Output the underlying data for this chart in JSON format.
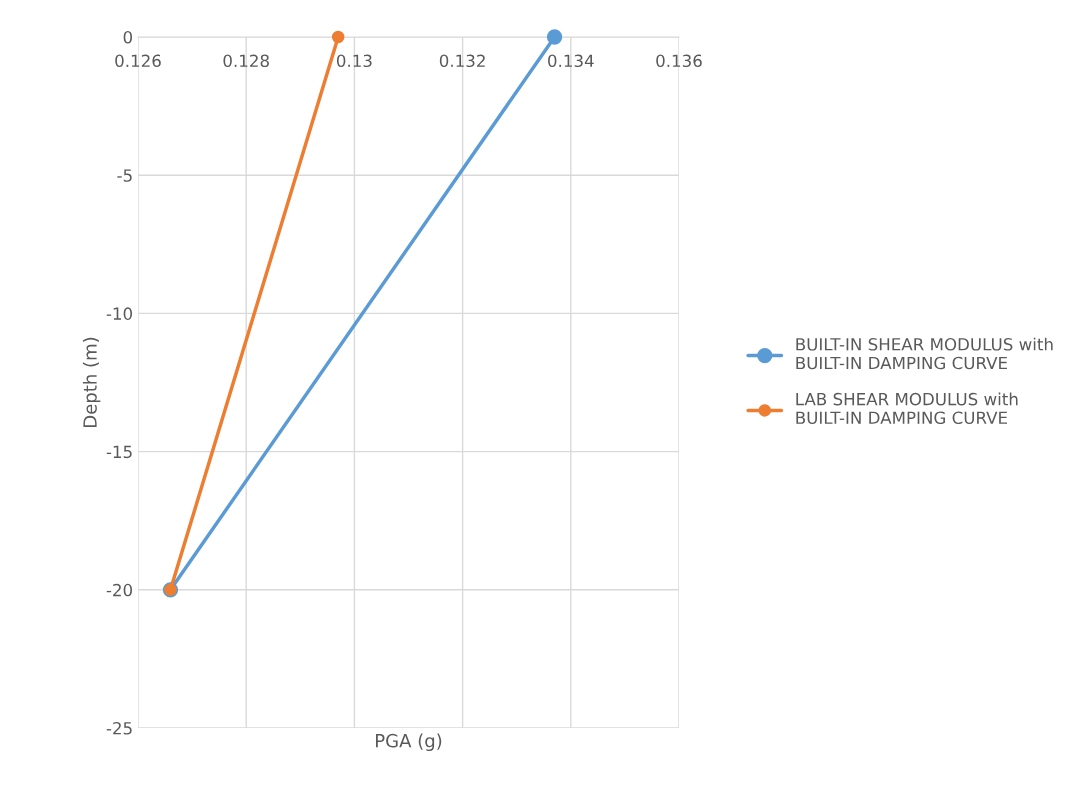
{
  "chart_data": {
    "type": "line",
    "xlabel": "PGA (g)",
    "ylabel": "Depth (m)",
    "xlim": [
      0.126,
      0.136
    ],
    "xticks": [
      0.126,
      0.128,
      0.13,
      0.132,
      0.134,
      0.136
    ],
    "ylim": [
      -25,
      0
    ],
    "yticks": [
      -25,
      -20,
      -15,
      -10,
      -5,
      0
    ],
    "grid": true,
    "legend": "right",
    "marker": "circle",
    "line_style": "solid",
    "series": [
      {
        "name": "BUILT-IN SHEAR MODULUS with BUILT-IN DAMPING CURVE",
        "color": "#5b9bd5",
        "x": [
          0.1337,
          0.1266
        ],
        "values": [
          0,
          -20
        ]
      },
      {
        "name": "LAB SHEAR MODULUS with BUILT-IN DAMPING CURVE",
        "color": "#ed7d31",
        "x": [
          0.1297,
          0.1266
        ],
        "values": [
          0,
          -20
        ]
      }
    ]
  }
}
